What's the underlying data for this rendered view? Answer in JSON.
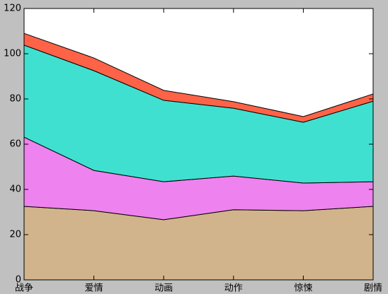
{
  "chart_data": {
    "type": "stacked-area",
    "categories": [
      "战争",
      "爱情",
      "动画",
      "动作",
      "惊悚",
      "剧情"
    ],
    "series": [
      {
        "color": "#d2b48c",
        "values": [
          32.5,
          30.6,
          26.6,
          31.0,
          30.6,
          32.5
        ]
      },
      {
        "color": "#ee82ee",
        "values": [
          30.6,
          17.8,
          16.8,
          14.9,
          12.2,
          10.9
        ]
      },
      {
        "color": "#40e0d0",
        "values": [
          40.7,
          44.1,
          36.0,
          30.0,
          26.9,
          35.6
        ]
      },
      {
        "color": "#ff6347",
        "values": [
          5.2,
          5.6,
          4.4,
          2.9,
          2.5,
          3.2
        ]
      }
    ],
    "ylim": [
      0,
      120
    ],
    "yticks": [
      0,
      20,
      40,
      60,
      80,
      100,
      120
    ]
  }
}
